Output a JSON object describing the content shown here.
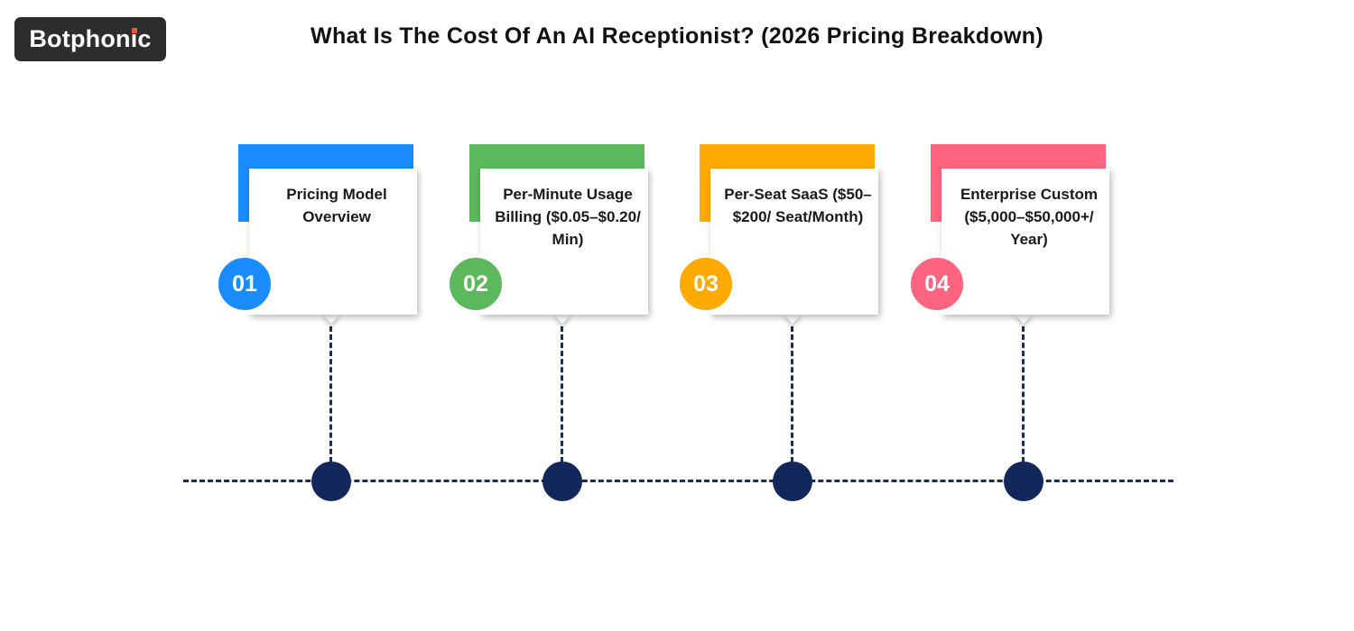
{
  "brand": {
    "logo_prefix": "Botphon",
    "logo_i": "i",
    "logo_suffix": "c"
  },
  "title": "What Is The Cost Of An AI Receptionist? (2026 Pricing Breakdown)",
  "colors": {
    "step1": "#1a8cff",
    "step2": "#5cb85c",
    "step3": "#ffaa00",
    "step4": "#ff6481",
    "timeline": "#1b2d55",
    "node": "#13285a"
  },
  "steps": [
    {
      "number": "01",
      "label": "Pricing Model Overview"
    },
    {
      "number": "02",
      "label": "Per-Minute Usage Billing ($0.05–$0.20/ Min)"
    },
    {
      "number": "03",
      "label": "Per-Seat SaaS ($50–$200/ Seat/Month)"
    },
    {
      "number": "04",
      "label": "Enterprise Custom ($5,000–$50,000+/ Year)"
    }
  ]
}
